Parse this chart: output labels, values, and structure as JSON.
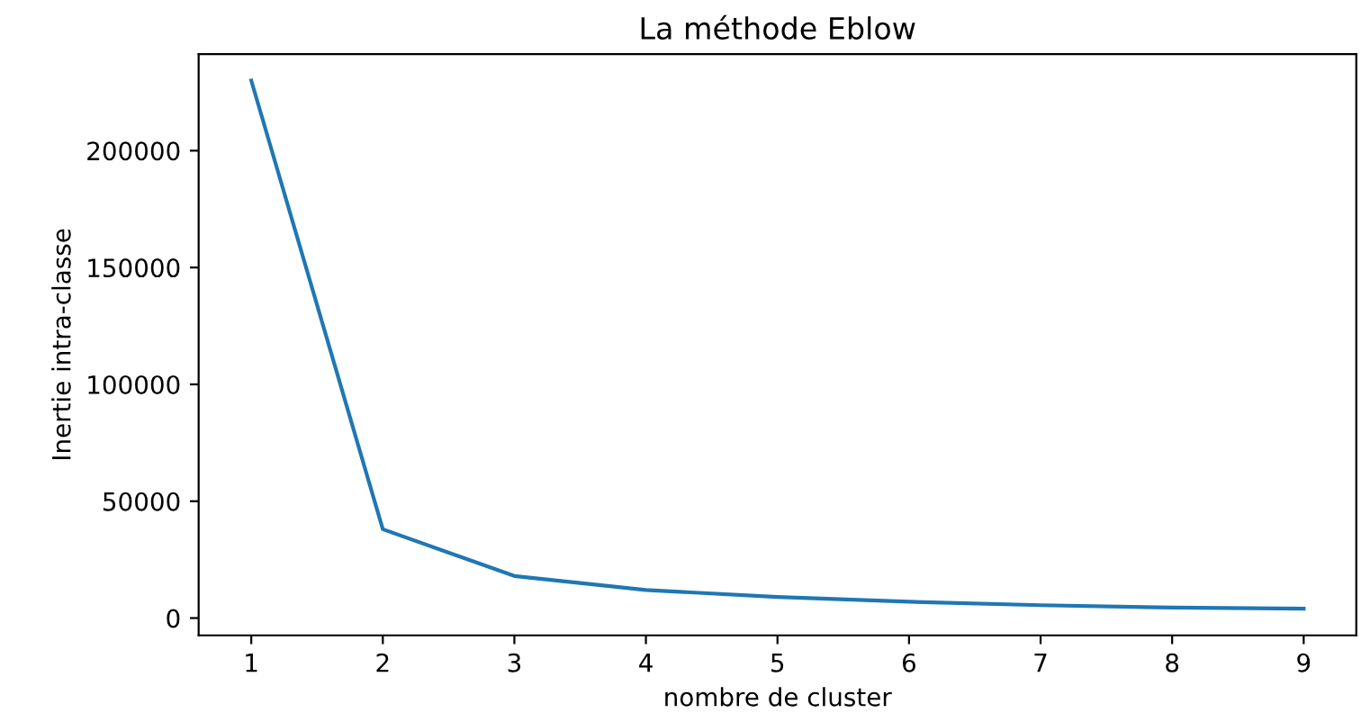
{
  "chart_data": {
    "type": "line",
    "title": "La méthode Eblow",
    "xlabel": "nombre de cluster",
    "ylabel": "Inertie intra-classe",
    "x": [
      1,
      2,
      3,
      4,
      5,
      6,
      7,
      8,
      9
    ],
    "series": [
      {
        "color": "#1f77b4",
        "values": [
          230000,
          38000,
          18000,
          12000,
          9000,
          7000,
          5500,
          4500,
          4000
        ]
      }
    ],
    "xlim": [
      0.6,
      9.4
    ],
    "ylim": [
      -7400,
      241300
    ],
    "xticks": [
      1,
      2,
      3,
      4,
      5,
      6,
      7,
      8,
      9
    ],
    "yticks": [
      0,
      50000,
      100000,
      150000,
      200000
    ],
    "grid": false,
    "legend": false,
    "marker": "none",
    "line_style": "solid"
  }
}
